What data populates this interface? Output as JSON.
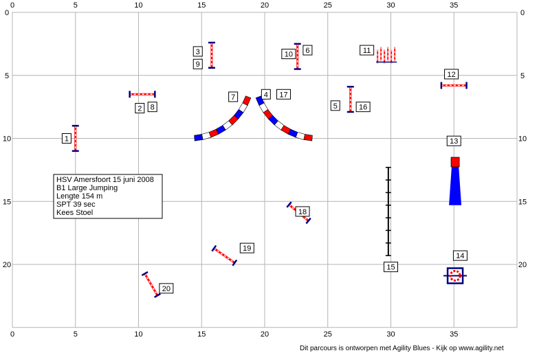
{
  "grid": {
    "x_max": 40,
    "y_max": 25,
    "x_ticks": [
      0,
      5,
      10,
      15,
      20,
      25,
      30,
      35
    ],
    "y_ticks": [
      0,
      5,
      10,
      15,
      20
    ]
  },
  "info_box": {
    "lines": [
      "HSV Amersfoort 15 juni 2008",
      "B1 Large Jumping",
      "Lengte 154 m",
      "SPT 39 sec",
      "Kees Stoel"
    ]
  },
  "footer": "Dit parcours is ontworpen met Agility Blues - Kijk op www.agility.net",
  "colors": {
    "grid": "#b4b4b4",
    "navy": "#000080",
    "red": "#ff0000",
    "blue": "#0000ff",
    "white": "#ffffff"
  },
  "obstacles": [
    {
      "id": "jump-1",
      "type": "jump",
      "x": 5.0,
      "y": 10.0,
      "angle": 90,
      "length": 2.0
    },
    {
      "id": "jump-2-8",
      "type": "jump",
      "x": 10.3,
      "y": 6.5,
      "angle": 0,
      "length": 2.0
    },
    {
      "id": "jump-3-9",
      "type": "jump",
      "x": 15.8,
      "y": 3.4,
      "angle": 90,
      "length": 2.0
    },
    {
      "id": "jump-10-6",
      "type": "jump",
      "x": 22.6,
      "y": 3.5,
      "angle": 90,
      "length": 2.0
    },
    {
      "id": "jump-5-16",
      "type": "jump",
      "x": 26.8,
      "y": 6.9,
      "angle": 90,
      "length": 2.0
    },
    {
      "id": "jump-12",
      "type": "jump",
      "x": 35.0,
      "y": 5.8,
      "angle": 0,
      "length": 2.0
    },
    {
      "id": "jump-18",
      "type": "jump",
      "x": 22.7,
      "y": 15.9,
      "angle": 40,
      "length": 2.0
    },
    {
      "id": "jump-19",
      "type": "jump",
      "x": 16.8,
      "y": 19.3,
      "angle": 35,
      "length": 2.0
    },
    {
      "id": "jump-20",
      "type": "jump",
      "x": 11.0,
      "y": 21.6,
      "angle": 60,
      "length": 2.0
    }
  ],
  "tunnels": [
    {
      "id": "tunnel-7",
      "cx": 14.0,
      "cy": 5.0,
      "r": 5.0,
      "start": 20,
      "end": 85
    },
    {
      "id": "tunnel-4-17",
      "cx": 24.2,
      "cy": 5.0,
      "r": 5.0,
      "start": 95,
      "end": 160
    }
  ],
  "weave": {
    "x": 29.6,
    "y": 3.4,
    "count": 6
  },
  "long_jump": {
    "x1": 29.8,
    "y1": 12.3,
    "x2": 29.8,
    "y2": 19.3
  },
  "chute": {
    "x": 35.1,
    "y_top": 11.5,
    "y_bottom": 15.3
  },
  "tire": {
    "x": 35.1,
    "y": 20.9
  },
  "labels": [
    {
      "text": "1",
      "x": 4.3,
      "y": 10.0
    },
    {
      "text": "2",
      "x": 10.1,
      "y": 7.6
    },
    {
      "text": "8",
      "x": 11.1,
      "y": 7.5
    },
    {
      "text": "3",
      "x": 14.7,
      "y": 3.1
    },
    {
      "text": "9",
      "x": 14.7,
      "y": 4.1
    },
    {
      "text": "7",
      "x": 17.5,
      "y": 6.7
    },
    {
      "text": "4",
      "x": 20.1,
      "y": 6.5
    },
    {
      "text": "17",
      "x": 21.5,
      "y": 6.5
    },
    {
      "text": "10",
      "x": 21.9,
      "y": 3.3
    },
    {
      "text": "6",
      "x": 23.4,
      "y": 3.0
    },
    {
      "text": "11",
      "x": 28.1,
      "y": 3.0
    },
    {
      "text": "5",
      "x": 25.6,
      "y": 7.4
    },
    {
      "text": "16",
      "x": 27.8,
      "y": 7.5
    },
    {
      "text": "12",
      "x": 34.8,
      "y": 4.9
    },
    {
      "text": "13",
      "x": 35.0,
      "y": 10.2
    },
    {
      "text": "18",
      "x": 23.0,
      "y": 15.8
    },
    {
      "text": "15",
      "x": 30.0,
      "y": 20.2
    },
    {
      "text": "19",
      "x": 18.6,
      "y": 18.7
    },
    {
      "text": "14",
      "x": 35.5,
      "y": 19.3
    },
    {
      "text": "20",
      "x": 12.2,
      "y": 21.9
    }
  ]
}
